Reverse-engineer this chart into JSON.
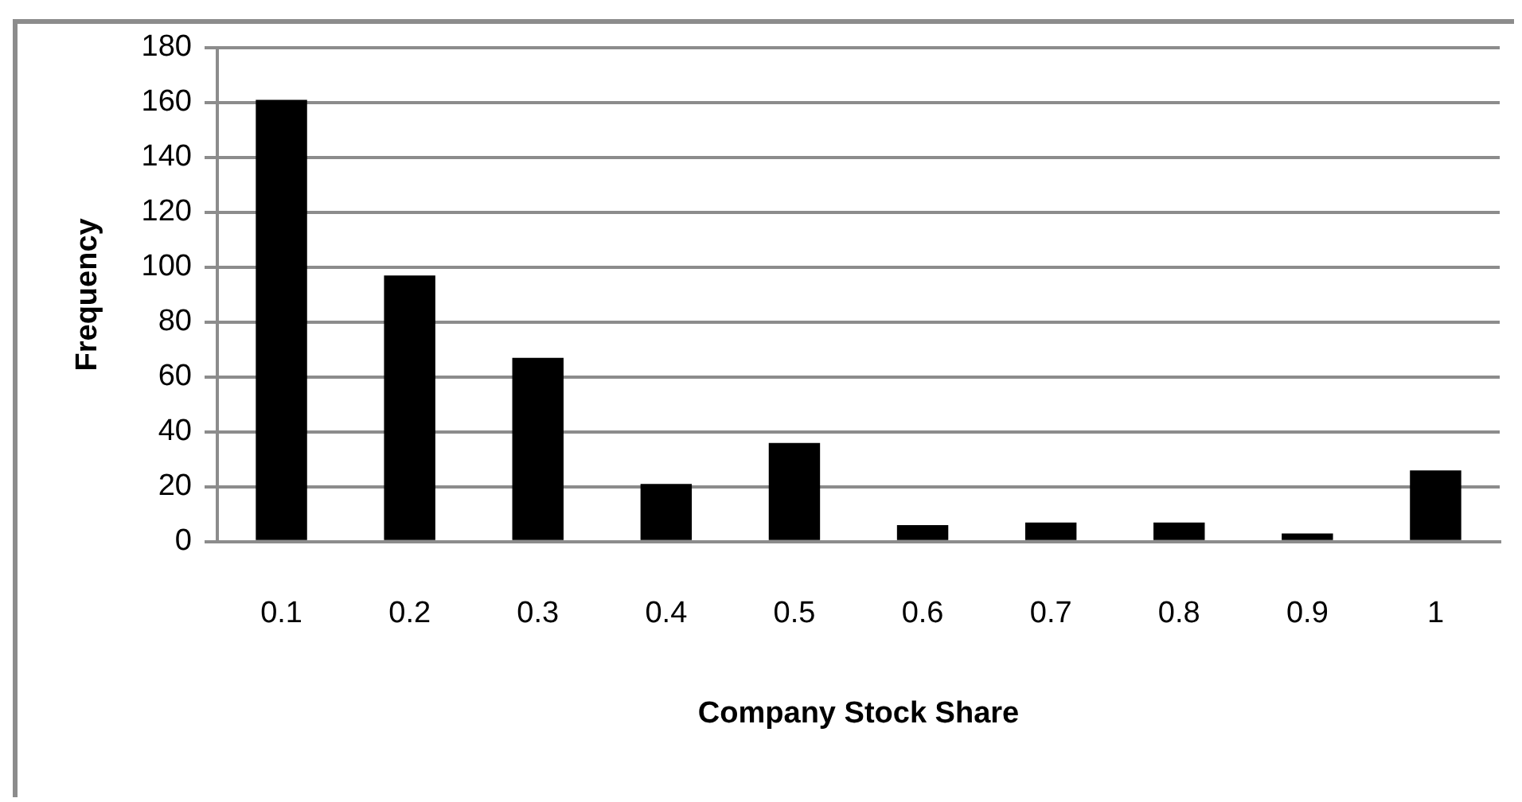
{
  "chart_data": {
    "type": "bar",
    "xlabel": "Company Stock Share",
    "ylabel": "Frequency",
    "categories": [
      "0.1",
      "0.2",
      "0.3",
      "0.4",
      "0.5",
      "0.6",
      "0.7",
      "0.8",
      "0.9",
      "1"
    ],
    "values": [
      161,
      97,
      67,
      21,
      36,
      6,
      7,
      7,
      3,
      26
    ],
    "color": "#000000",
    "ylim": [
      0,
      180
    ],
    "yticks": [
      0,
      20,
      40,
      60,
      80,
      100,
      120,
      140,
      160,
      180
    ],
    "grid": "y",
    "legend": false
  }
}
